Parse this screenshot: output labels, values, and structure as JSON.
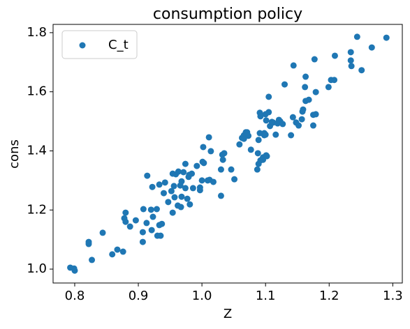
{
  "chart_data": {
    "type": "scatter",
    "title": "consumption policy",
    "x_label": "Z",
    "y_label": "cons",
    "xlim": [
      0.766,
      1.315
    ],
    "ylim": [
      0.953,
      1.828
    ],
    "xticks": [
      0.8,
      0.9,
      {
        "value": 1,
        "label": "1.0"
      },
      1.1,
      1.2,
      1.3
    ],
    "yticks": [
      {
        "value": 1,
        "label": "1.0"
      },
      1.2,
      1.4,
      1.6,
      1.8
    ],
    "grid": false,
    "legend": "upper left",
    "series": [
      {
        "name": "C_t",
        "color": "#1f77b4",
        "x": [
          0.793,
          0.8,
          0.799,
          0.822,
          0.822,
          0.827,
          0.844,
          0.859,
          0.867,
          0.876,
          0.878,
          0.88,
          0.88,
          0.887,
          0.896,
          0.907,
          0.907,
          0.908,
          0.913,
          0.914,
          0.92,
          0.921,
          0.922,
          0.923,
          0.929,
          0.93,
          0.933,
          0.933,
          0.935,
          0.937,
          0.94,
          0.942,
          0.947,
          0.952,
          0.954,
          0.956,
          0.954,
          0.957,
          0.959,
          0.962,
          0.963,
          0.966,
          0.967,
          0.968,
          0.968,
          0.971,
          0.974,
          0.974,
          0.977,
          0.979,
          0.98,
          0.981,
          0.984,
          0.986,
          0.992,
          0.997,
          0.997,
          1.0,
          1.001,
          1.002,
          1.003,
          1.009,
          1.011,
          1.012,
          1.014,
          1.018,
          1.03,
          1.03,
          1.032,
          1.033,
          1.035,
          1.046,
          1.051,
          1.059,
          1.063,
          1.066,
          1.066,
          1.069,
          1.07,
          1.071,
          1.073,
          1.077,
          1.088,
          1.089,
          1.092,
          1.096,
          1.096,
          1.101,
          1.102,
          1.089,
          1.091,
          1.091,
          1.092,
          1.087,
          1.098,
          1.098,
          1.1,
          1.1,
          1.105,
          1.105,
          1.101,
          1.107,
          1.11,
          1.112,
          1.116,
          1.119,
          1.121,
          1.123,
          1.127,
          1.13,
          1.14,
          1.143,
          1.144,
          1.148,
          1.152,
          1.157,
          1.158,
          1.159,
          1.163,
          1.162,
          1.163,
          1.168,
          1.175,
          1.175,
          1.177,
          1.179,
          1.179,
          1.199,
          1.203,
          1.208,
          1.209,
          1.234,
          1.235,
          1.234,
          1.244,
          1.251,
          1.267,
          1.29
        ],
        "values": [
          1.005,
          0.995,
          1.002,
          1.092,
          1.085,
          1.031,
          1.123,
          1.05,
          1.066,
          1.059,
          1.172,
          1.191,
          1.16,
          1.144,
          1.165,
          1.092,
          1.125,
          1.203,
          1.156,
          1.316,
          1.201,
          1.132,
          1.278,
          1.177,
          1.203,
          1.113,
          1.149,
          1.286,
          1.113,
          1.153,
          1.257,
          1.293,
          1.227,
          1.264,
          1.323,
          1.281,
          1.191,
          1.243,
          1.321,
          1.215,
          1.33,
          1.283,
          1.21,
          1.245,
          1.297,
          1.328,
          1.274,
          1.356,
          1.238,
          1.312,
          1.319,
          1.219,
          1.323,
          1.274,
          1.349,
          1.276,
          1.267,
          1.3,
          1.363,
          1.413,
          1.359,
          1.3,
          1.446,
          1.302,
          1.399,
          1.295,
          1.248,
          1.337,
          1.387,
          1.37,
          1.392,
          1.337,
          1.304,
          1.422,
          1.444,
          1.441,
          1.453,
          1.463,
          1.453,
          1.463,
          1.451,
          1.404,
          1.392,
          1.356,
          1.368,
          1.37,
          1.378,
          1.385,
          1.382,
          1.437,
          1.46,
          1.529,
          1.517,
          1.337,
          1.46,
          1.453,
          1.455,
          1.524,
          1.583,
          1.531,
          1.503,
          1.484,
          1.498,
          1.496,
          1.455,
          1.493,
          1.505,
          1.5,
          1.491,
          1.625,
          1.453,
          1.514,
          1.689,
          1.496,
          1.486,
          1.507,
          1.533,
          1.54,
          1.569,
          1.616,
          1.651,
          1.573,
          1.486,
          1.522,
          1.71,
          1.524,
          1.599,
          1.616,
          1.64,
          1.64,
          1.722,
          1.706,
          1.687,
          1.734,
          1.786,
          1.673,
          1.75,
          1.783
        ]
      }
    ]
  }
}
